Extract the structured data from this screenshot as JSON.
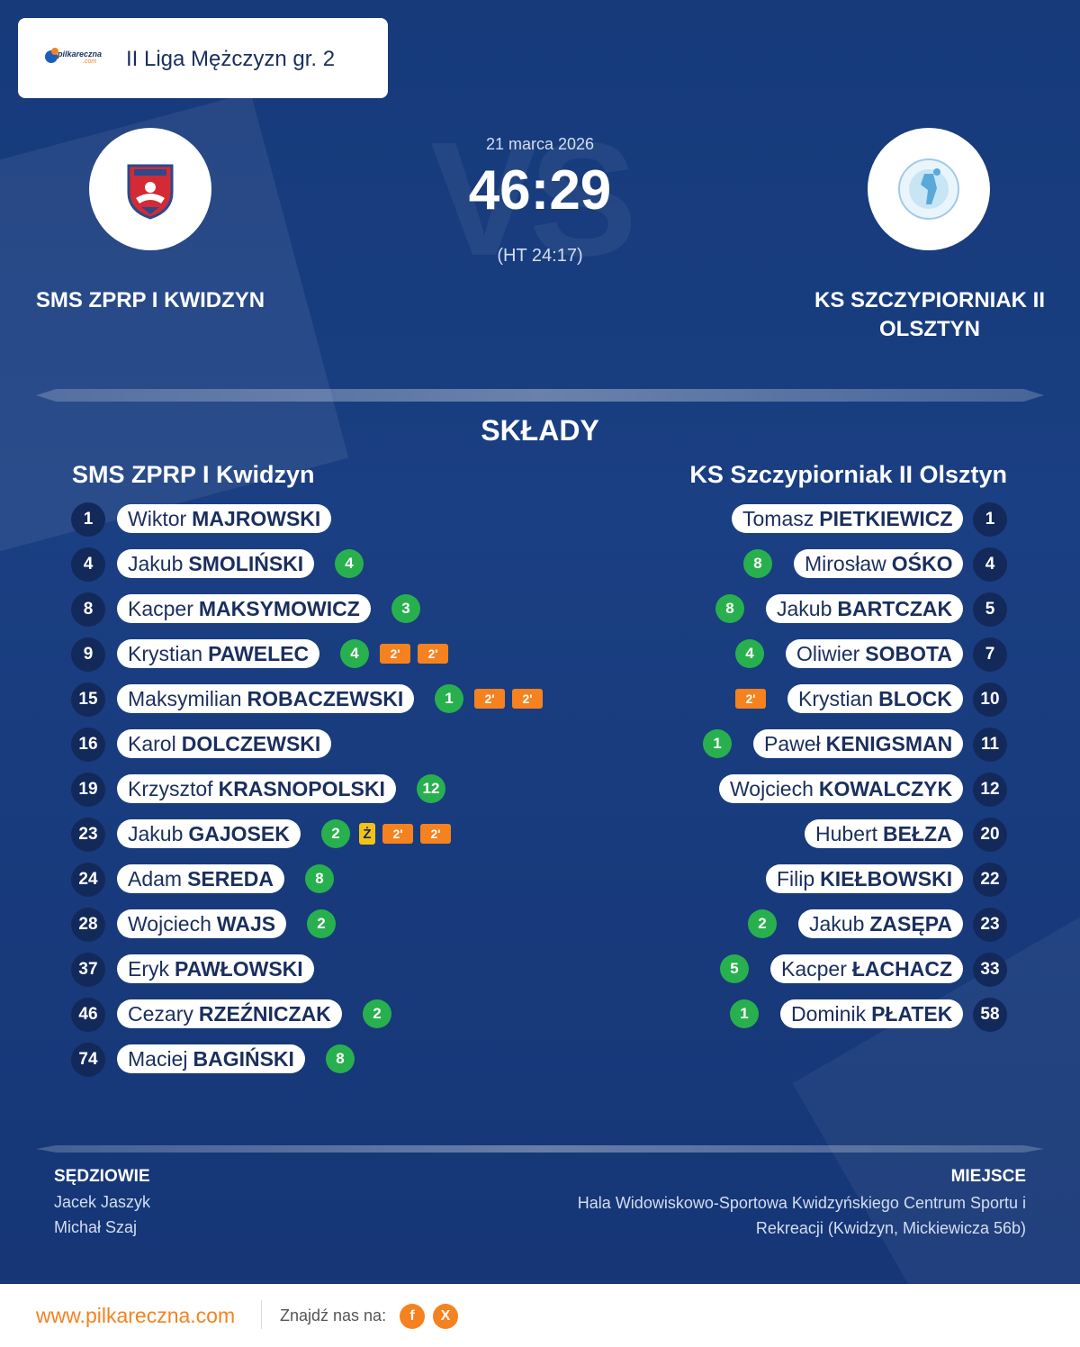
{
  "league": {
    "name": "II Liga Mężczyzn gr. 2",
    "logo_text": "pilkareczna",
    "logo_sub": ".com"
  },
  "match": {
    "date": "21 marca 2026",
    "score": "46:29",
    "halftime": "(HT 24:17)",
    "watermark": "VS"
  },
  "home": {
    "name": "SMS ZPRP I KWIDZYN",
    "lineup_title": "SMS ZPRP I Kwidzyn"
  },
  "away": {
    "name_line1": "KS SZCZYPIORNIAK II",
    "name_line2": "OLSZTYN",
    "lineup_title": "KS Szczypiorniak II Olsztyn"
  },
  "section_title": "SKŁADY",
  "home_players": [
    {
      "num": "1",
      "first": "Wiktor",
      "last": "MAJROWSKI",
      "goals": "",
      "yellow": "",
      "susp": []
    },
    {
      "num": "4",
      "first": "Jakub",
      "last": "SMOLIŃSKI",
      "goals": "4",
      "yellow": "",
      "susp": []
    },
    {
      "num": "8",
      "first": "Kacper",
      "last": "MAKSYMOWICZ",
      "goals": "3",
      "yellow": "",
      "susp": []
    },
    {
      "num": "9",
      "first": "Krystian",
      "last": "PAWELEC",
      "goals": "4",
      "yellow": "",
      "susp": [
        "2'",
        "2'"
      ]
    },
    {
      "num": "15",
      "first": "Maksymilian",
      "last": "ROBACZEWSKI",
      "goals": "1",
      "yellow": "",
      "susp": [
        "2'",
        "2'"
      ]
    },
    {
      "num": "16",
      "first": "Karol",
      "last": "DOLCZEWSKI",
      "goals": "",
      "yellow": "",
      "susp": []
    },
    {
      "num": "19",
      "first": "Krzysztof",
      "last": "KRASNOPOLSKI",
      "goals": "12",
      "yellow": "",
      "susp": []
    },
    {
      "num": "23",
      "first": "Jakub",
      "last": "GAJOSEK",
      "goals": "2",
      "yellow": "Ż",
      "susp": [
        "2'",
        "2'"
      ]
    },
    {
      "num": "24",
      "first": "Adam",
      "last": "SEREDA",
      "goals": "8",
      "yellow": "",
      "susp": []
    },
    {
      "num": "28",
      "first": "Wojciech",
      "last": "WAJS",
      "goals": "2",
      "yellow": "",
      "susp": []
    },
    {
      "num": "37",
      "first": "Eryk",
      "last": "PAWŁOWSKI",
      "goals": "",
      "yellow": "",
      "susp": []
    },
    {
      "num": "46",
      "first": "Cezary",
      "last": "RZEŹNICZAK",
      "goals": "2",
      "yellow": "",
      "susp": []
    },
    {
      "num": "74",
      "first": "Maciej",
      "last": "BAGIŃSKI",
      "goals": "8",
      "yellow": "",
      "susp": []
    }
  ],
  "away_players": [
    {
      "num": "1",
      "first": "Tomasz",
      "last": "PIETKIEWICZ",
      "goals": "",
      "susp": []
    },
    {
      "num": "4",
      "first": "Mirosław",
      "last": "OŚKO",
      "goals": "8",
      "susp": []
    },
    {
      "num": "5",
      "first": "Jakub",
      "last": "BARTCZAK",
      "goals": "8",
      "susp": []
    },
    {
      "num": "7",
      "first": "Oliwier",
      "last": "SOBOTA",
      "goals": "4",
      "susp": []
    },
    {
      "num": "10",
      "first": "Krystian",
      "last": "BLOCK",
      "goals": "",
      "susp": [
        "2'"
      ]
    },
    {
      "num": "11",
      "first": "Paweł",
      "last": "KENIGSMAN",
      "goals": "1",
      "susp": []
    },
    {
      "num": "12",
      "first": "Wojciech",
      "last": "KOWALCZYK",
      "goals": "",
      "susp": []
    },
    {
      "num": "20",
      "first": "Hubert",
      "last": "BEŁZA",
      "goals": "",
      "susp": []
    },
    {
      "num": "22",
      "first": "Filip",
      "last": "KIEŁBOWSKI",
      "goals": "",
      "susp": []
    },
    {
      "num": "23",
      "first": "Jakub",
      "last": "ZASĘPA",
      "goals": "2",
      "susp": []
    },
    {
      "num": "33",
      "first": "Kacper",
      "last": "ŁACHACZ",
      "goals": "5",
      "susp": []
    },
    {
      "num": "58",
      "first": "Dominik",
      "last": "PŁATEK",
      "goals": "1",
      "susp": []
    }
  ],
  "referees": {
    "title": "SĘDZIOWIE",
    "names": [
      "Jacek Jaszyk",
      "Michał Szaj"
    ]
  },
  "venue": {
    "title": "MIEJSCE",
    "text": "Hala Widowiskowo-Sportowa Kwidzyńskiego Centrum Sportu i Rekreacji (Kwidzyn, Mickiewicza 56b)"
  },
  "footer": {
    "url": "www.pilkareczna.com",
    "find_us": "Znajdź nas na:",
    "fb": "f",
    "x": "X"
  },
  "icons": {
    "facebook": "facebook-icon",
    "x": "x-icon"
  },
  "colors": {
    "background": "#163a7a",
    "accent": "#f5821f",
    "goal": "#28b04e",
    "yellow": "#f2c418",
    "number": "#13295a"
  }
}
